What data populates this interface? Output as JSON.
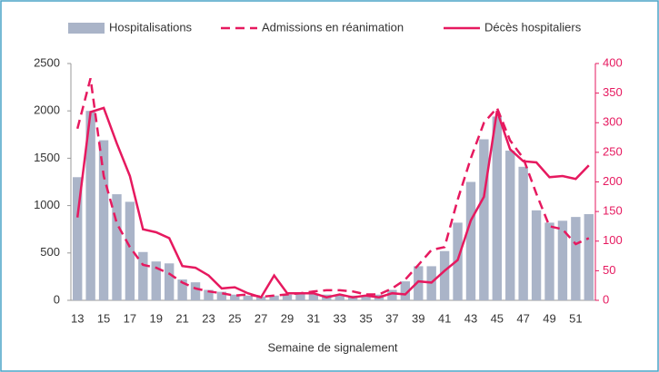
{
  "chart_data": {
    "type": "bar",
    "xlabel": "Semaine de signalement",
    "categories": [
      13,
      null,
      15,
      null,
      17,
      null,
      19,
      null,
      21,
      null,
      23,
      null,
      25,
      null,
      27,
      null,
      29,
      null,
      31,
      null,
      33,
      null,
      35,
      null,
      37,
      null,
      39,
      null,
      41,
      null,
      43,
      null,
      45,
      null,
      47,
      null,
      49,
      null,
      51,
      null
    ],
    "series": [
      {
        "name": "Hospitalisations",
        "type": "bar",
        "color": "#aab4c8",
        "values": [
          1300,
          2000,
          1690,
          1120,
          1040,
          510,
          410,
          390,
          220,
          190,
          110,
          90,
          60,
          50,
          40,
          50,
          60,
          70,
          70,
          60,
          60,
          50,
          50,
          60,
          110,
          200,
          360,
          360,
          520,
          820,
          1250,
          1700,
          1940,
          1580,
          1410,
          950,
          820,
          840,
          880,
          910
        ]
      },
      {
        "name": "Admissions en réanimation",
        "type": "line",
        "dash": true,
        "axis": "y2",
        "color": "#e6195f",
        "values": [
          290,
          375,
          210,
          130,
          90,
          60,
          55,
          45,
          30,
          20,
          15,
          12,
          8,
          10,
          6,
          8,
          10,
          12,
          15,
          17,
          17,
          15,
          10,
          10,
          20,
          35,
          60,
          85,
          90,
          170,
          240,
          300,
          325,
          270,
          240,
          180,
          125,
          120,
          95,
          105
        ]
      },
      {
        "name": "Décès hospitaliers",
        "type": "line",
        "dash": false,
        "axis": "y2",
        "color": "#e6195f",
        "values": [
          140,
          318,
          325,
          265,
          210,
          120,
          115,
          105,
          58,
          55,
          42,
          20,
          22,
          12,
          5,
          42,
          12,
          12,
          12,
          5,
          10,
          5,
          8,
          5,
          12,
          10,
          32,
          30,
          50,
          68,
          135,
          175,
          320,
          255,
          235,
          233,
          208,
          210,
          205,
          228
        ]
      }
    ],
    "ylim": [
      0,
      2500
    ],
    "yticks": [
      0,
      500,
      1000,
      1500,
      2000,
      2500
    ],
    "y2lim": [
      0,
      400
    ],
    "y2ticks": [
      0,
      50,
      100,
      150,
      200,
      250,
      300,
      350,
      400
    ],
    "y2color": "#e6195f",
    "legend": "top"
  }
}
